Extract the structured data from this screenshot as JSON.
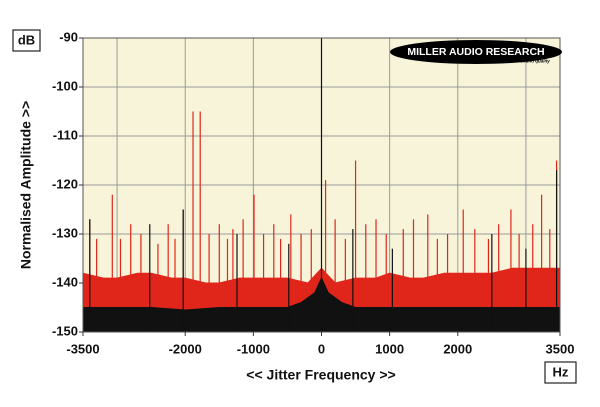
{
  "chart_data": {
    "type": "spectrum",
    "y_unit": "dB",
    "x_unit": "Hz",
    "ylabel": "Normalised Amplitude >>",
    "xlabel": "<< Jitter Frequency >>",
    "annotations": [
      "MILLER AUDIO RESEARCH",
      "Getting the measure of sound quality"
    ],
    "xlim": [
      -3500,
      3500
    ],
    "ylim": [
      -150,
      -90
    ],
    "xticks": [
      -3500,
      -2000,
      -1000,
      0,
      1000,
      2000,
      3500
    ],
    "xgrid": [
      -3000,
      -2000,
      -1000,
      0,
      1000,
      2000,
      3000
    ],
    "yticks": [
      -90,
      -100,
      -110,
      -120,
      -130,
      -140,
      -150
    ],
    "grid": true,
    "series": [
      {
        "style": "area",
        "color": "#e0261b",
        "x": [
          -3500,
          -3200,
          -3000,
          -2700,
          -2500,
          -2200,
          -2000,
          -1700,
          -1500,
          -1200,
          -1000,
          -700,
          -500,
          -200,
          0,
          200,
          500,
          800,
          1000,
          1300,
          1500,
          1800,
          2000,
          2300,
          2500,
          2800,
          3000,
          3300,
          3500
        ],
        "values": [
          -138,
          -139,
          -139,
          -138,
          -138,
          -139,
          -139,
          -140,
          -140,
          -139,
          -139,
          -139,
          -139,
          -140,
          -137,
          -140,
          -139,
          -139,
          -138,
          -139,
          -139,
          -138,
          -138,
          -138,
          -138,
          -137,
          -137,
          -137,
          -137
        ]
      },
      {
        "style": "stem",
        "color": "#e0261b",
        "x": [
          -3400,
          -3300,
          -3070,
          -2950,
          -2800,
          -2650,
          -2400,
          -2250,
          -2150,
          -2030,
          -1885,
          -1780,
          -1650,
          -1500,
          -1380,
          -1300,
          -1150,
          -990,
          -850,
          -700,
          -600,
          -450,
          -300,
          -150,
          60,
          200,
          350,
          500,
          650,
          800,
          950,
          1200,
          1350,
          1560,
          1700,
          1850,
          2080,
          2250,
          2450,
          2600,
          2780,
          2900,
          3100,
          3230,
          3350,
          3450
        ],
        "values": [
          -127,
          -131,
          -122,
          -131,
          -128,
          -130,
          -132,
          -128,
          -131,
          -125,
          -105,
          -105,
          -130,
          -128,
          -131,
          -129,
          -127,
          -122,
          -130,
          -128,
          -131,
          -126,
          -130,
          -129,
          -119,
          -127,
          -131,
          -115,
          -128,
          -127,
          -130,
          -129,
          -127,
          -126,
          -131,
          -130,
          -125,
          -129,
          -131,
          -128,
          -125,
          -130,
          -128,
          -122,
          -129,
          -115
        ]
      },
      {
        "style": "area",
        "color": "#111111",
        "x": [
          -3500,
          -3000,
          -2500,
          -2000,
          -1500,
          -1000,
          -500,
          -300,
          -100,
          0,
          100,
          300,
          500,
          1000,
          1500,
          2000,
          2500,
          3000,
          3500
        ],
        "values": [
          -145,
          -145,
          -145,
          -145.5,
          -145,
          -145,
          -145,
          -144,
          -142,
          -139,
          -142,
          -144,
          -145,
          -145,
          -145,
          -145,
          -145,
          -145,
          -145
        ]
      },
      {
        "style": "stem",
        "color": "#111111",
        "x": [
          -3400,
          -2520,
          -2030,
          -1240,
          -480,
          0,
          460,
          1040,
          2500,
          3000,
          3450
        ],
        "values": [
          -127,
          -128,
          -125,
          -130,
          -132,
          -90,
          -129,
          -133,
          -130,
          -133,
          -117
        ]
      }
    ]
  }
}
